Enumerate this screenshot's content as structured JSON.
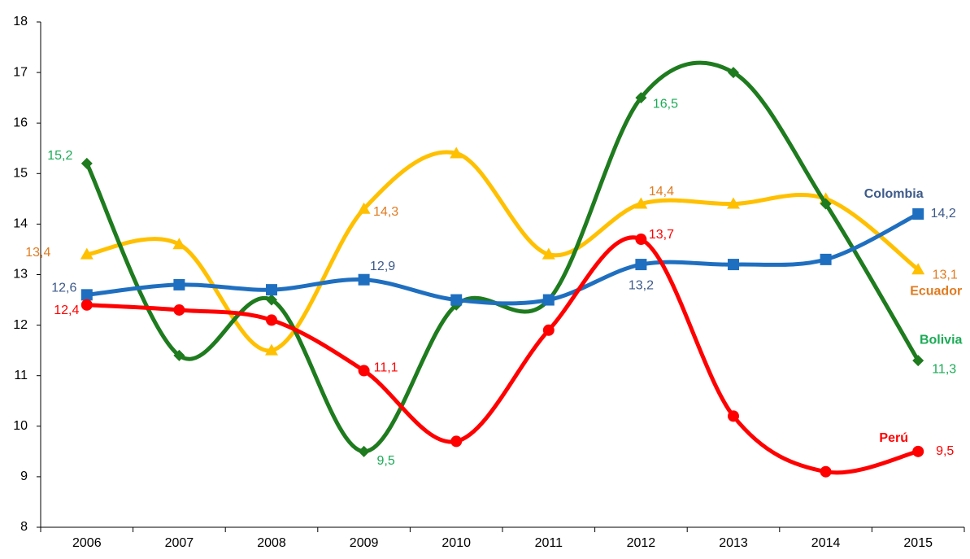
{
  "chart_data": {
    "type": "line",
    "categories": [
      "2006",
      "2007",
      "2008",
      "2009",
      "2010",
      "2011",
      "2012",
      "2013",
      "2014",
      "2015"
    ],
    "ylim": [
      8,
      18
    ],
    "yticks": [
      8,
      9,
      10,
      11,
      12,
      13,
      14,
      15,
      16,
      17,
      18
    ],
    "grid": false,
    "series": [
      {
        "name": "Ecuador",
        "color": "#ffc000",
        "label_color": "#e07b20",
        "marker": "triangle",
        "values": [
          13.4,
          13.6,
          11.5,
          14.3,
          15.4,
          13.4,
          14.4,
          14.4,
          14.5,
          13.1
        ],
        "value_labels": [
          "13,4",
          null,
          null,
          "14,3",
          null,
          null,
          "14,4",
          null,
          null,
          "13,1"
        ]
      },
      {
        "name": "Bolivia",
        "color": "#1e7b1e",
        "label_color": "#1aab55",
        "marker": "diamond",
        "values": [
          15.2,
          11.4,
          12.5,
          9.5,
          12.4,
          12.5,
          16.5,
          17.0,
          14.4,
          11.3
        ],
        "value_labels": [
          "15,2",
          null,
          null,
          "9,5",
          null,
          null,
          "16,5",
          null,
          null,
          "11,3"
        ]
      },
      {
        "name": "Colombia",
        "color": "#1f6fc0",
        "label_color": "#3d5a8a",
        "marker": "square",
        "values": [
          12.6,
          12.8,
          12.7,
          12.9,
          12.5,
          12.5,
          13.2,
          13.2,
          13.3,
          14.2
        ],
        "value_labels": [
          "12,6",
          null,
          null,
          "12,9",
          null,
          null,
          "13,2",
          null,
          null,
          "14,2"
        ]
      },
      {
        "name": "Perú",
        "color": "#ff0000",
        "label_color": "#ff0000",
        "marker": "circle",
        "values": [
          12.4,
          12.3,
          12.1,
          11.1,
          9.7,
          11.9,
          13.7,
          10.2,
          9.1,
          9.5
        ],
        "value_labels": [
          "12,4",
          null,
          null,
          "11,1",
          null,
          null,
          "13,7",
          null,
          null,
          "9,5"
        ]
      }
    ]
  }
}
